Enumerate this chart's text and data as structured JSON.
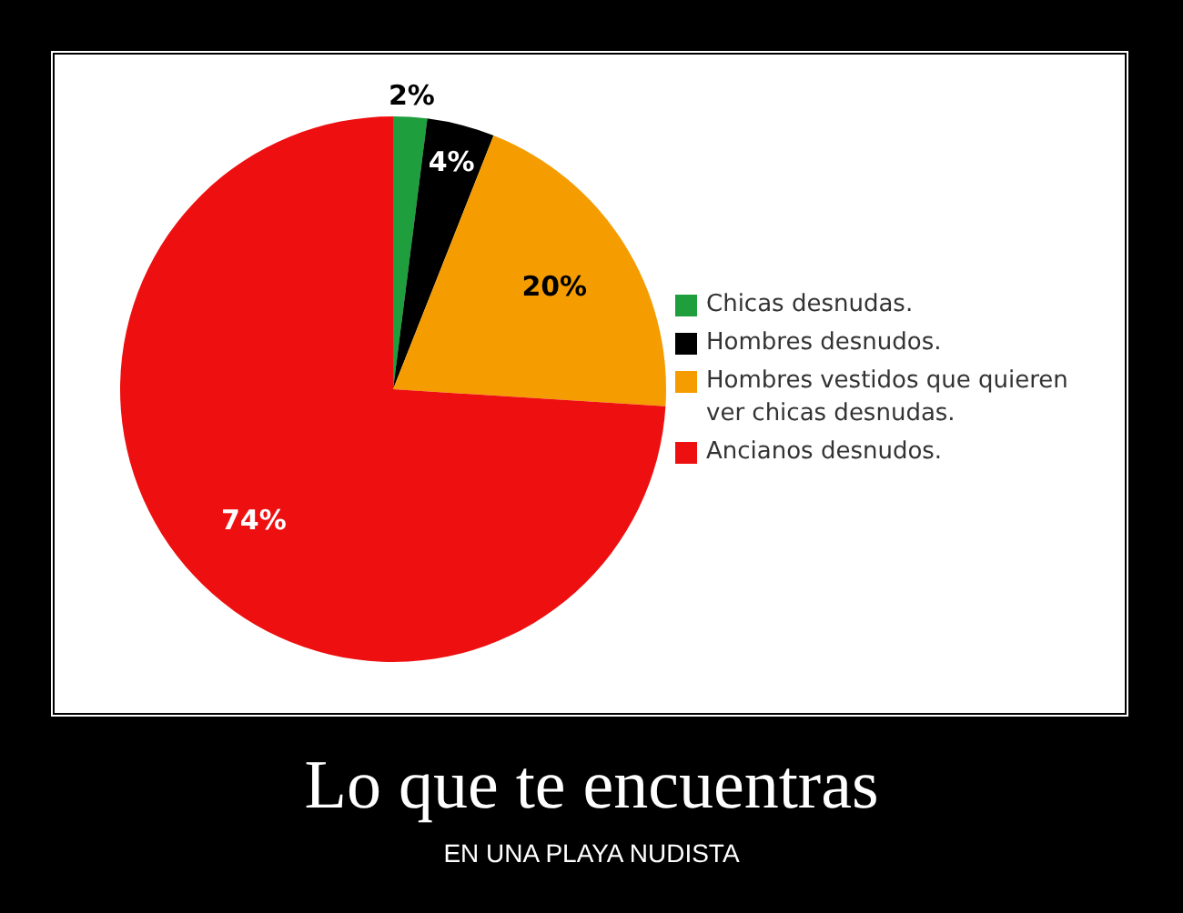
{
  "chart_data": {
    "type": "pie",
    "title": "Lo que te encuentras",
    "subtitle": "EN UNA PLAYA NUDISTA",
    "categories": [
      "Chicas desnudas.",
      "Hombres desnudos.",
      "Hombres vestidos que quieren ver chicas desnudas.",
      "Ancianos desnudos."
    ],
    "values": [
      2,
      4,
      20,
      74
    ],
    "colors": [
      "#1e9e3c",
      "#000000",
      "#f59d00",
      "#ee1010"
    ],
    "value_labels": [
      "2%",
      "4%",
      "20%",
      "74%"
    ],
    "legend": "right"
  }
}
